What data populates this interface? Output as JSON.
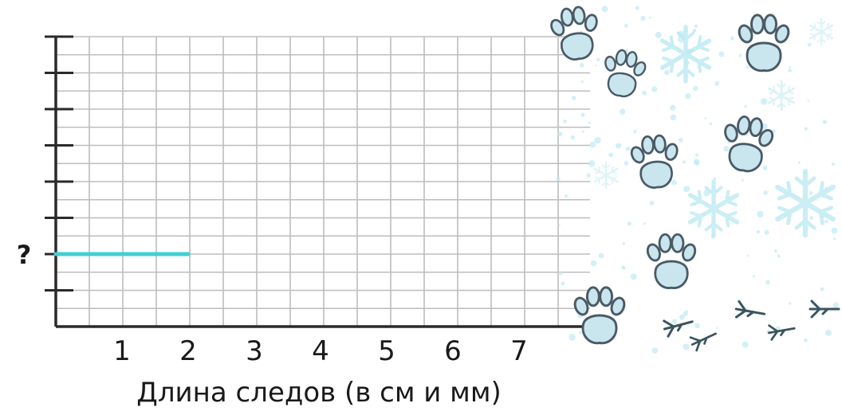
{
  "chart_data": {
    "type": "bar",
    "orientation": "horizontal",
    "title": "",
    "xlabel": "Длина следов (в см и мм)",
    "ylabel": "",
    "x_ticks": [
      "1",
      "2",
      "3",
      "4",
      "5",
      "6",
      "7"
    ],
    "xlim": [
      0,
      8
    ],
    "ylim": [
      0,
      8
    ],
    "grid": true,
    "y_category_labels": [
      {
        "y": 2,
        "label": "?"
      }
    ],
    "bars": [
      {
        "y": 2,
        "start": 0,
        "end": 2,
        "color": "#3fd0d4"
      }
    ],
    "colors": {
      "grid": "#bdbdbd",
      "axis": "#2a2a2a",
      "bar": "#3fd0d4",
      "snow": "#bfeaf3",
      "track_fill": "#c9e6ee",
      "track_stroke": "#4a5a66"
    }
  },
  "illustration": {
    "icons": [
      "paw-print-icon",
      "bird-track-icon",
      "snowflake-icon"
    ]
  }
}
